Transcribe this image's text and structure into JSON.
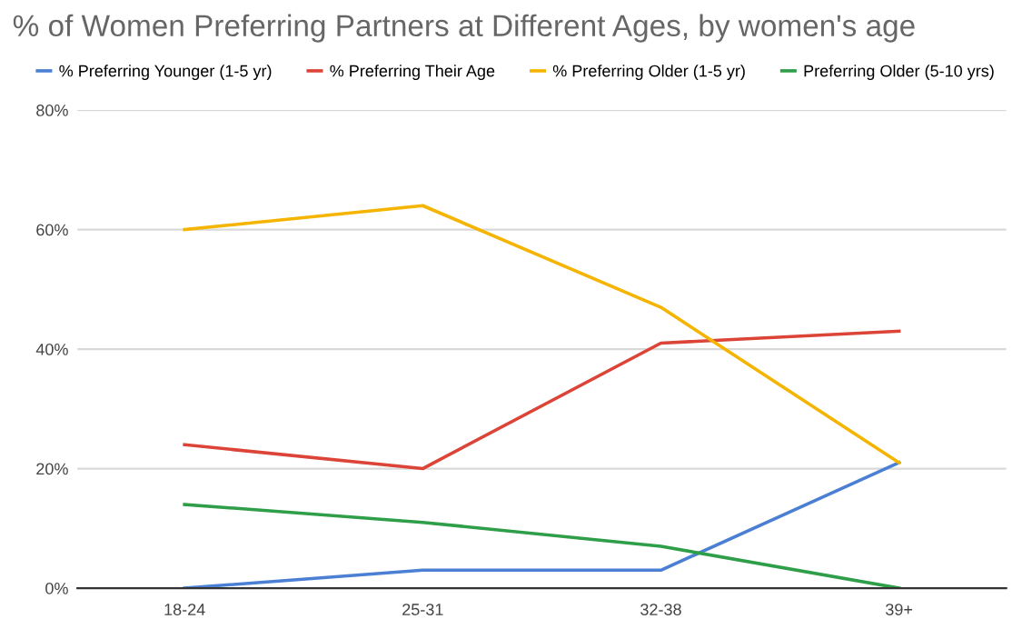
{
  "chart_data": {
    "type": "line",
    "title": "% of Women Preferring Partners at Different Ages, by women's age",
    "categories": [
      "18-24",
      "25-31",
      "32-38",
      "39+"
    ],
    "series": [
      {
        "name": "% Preferring Younger (1-5 yr)",
        "color": "#4a7fd4",
        "values": [
          0,
          3,
          3,
          21
        ]
      },
      {
        "name": "% Preferring Their Age",
        "color": "#db4437",
        "values": [
          24,
          20,
          41,
          43
        ]
      },
      {
        "name": "% Preferring Older (1-5 yr)",
        "color": "#f4b400",
        "values": [
          60,
          64,
          47,
          21
        ]
      },
      {
        "name": "Preferring Older (5-10 yrs)",
        "color": "#2e9e48",
        "values": [
          14,
          11,
          7,
          0
        ]
      }
    ],
    "ylim": [
      0,
      80
    ],
    "yticks": [
      {
        "value": 0,
        "label": "0%"
      },
      {
        "value": 20,
        "label": "20%"
      },
      {
        "value": 40,
        "label": "40%"
      },
      {
        "value": 60,
        "label": "60%"
      },
      {
        "value": 80,
        "label": "80%"
      }
    ],
    "grid": "y",
    "legend": "top",
    "marker": "none",
    "line_style": "solid"
  }
}
